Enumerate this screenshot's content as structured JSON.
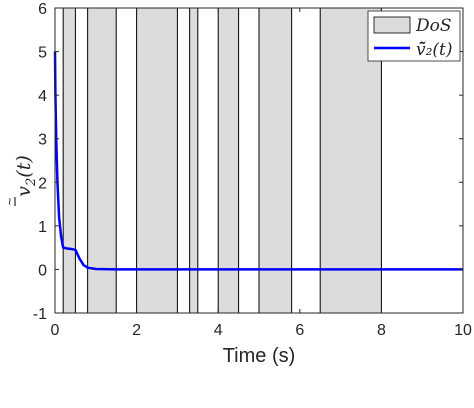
{
  "chart_data": {
    "type": "line",
    "xlabel": "Time (s)",
    "ylabel_math": {
      "base": "v",
      "subscript": "2",
      "argument": "(t)"
    },
    "xlim": [
      0,
      10
    ],
    "ylim": [
      -1,
      6
    ],
    "x_ticks": [
      "0",
      "2",
      "4",
      "6",
      "8",
      "10"
    ],
    "y_ticks": [
      "-1",
      "0",
      "1",
      "2",
      "3",
      "4",
      "5",
      "6"
    ],
    "grid": false,
    "legend": {
      "placement": "top-right",
      "entries": [
        "DoS",
        "v̄̃₂(t)"
      ]
    },
    "dos_intervals": [
      [
        0.2,
        0.5
      ],
      [
        0.8,
        1.5
      ],
      [
        2.0,
        3.0
      ],
      [
        3.3,
        3.5
      ],
      [
        4.0,
        4.5
      ],
      [
        5.0,
        5.8
      ],
      [
        6.5,
        8.0
      ]
    ],
    "series": [
      {
        "name": "v̄̃₂(t)",
        "color": "#0000ff",
        "x": [
          0,
          0.01,
          0.03,
          0.06,
          0.1,
          0.15,
          0.2,
          0.3,
          0.4,
          0.5,
          0.6,
          0.7,
          0.8,
          1.0,
          1.5,
          2,
          3,
          4,
          5,
          6,
          7,
          8,
          9,
          10
        ],
        "y": [
          5.0,
          4.0,
          3.0,
          2.0,
          1.2,
          0.75,
          0.5,
          0.48,
          0.47,
          0.45,
          0.25,
          0.1,
          0.04,
          0.01,
          0,
          0,
          0,
          0,
          0,
          0,
          0,
          0,
          0,
          0
        ]
      }
    ],
    "colors": {
      "dos_fill": "#dcdcdc",
      "dos_stroke": "#000000",
      "series": "#0000ff",
      "axes": "#262626"
    }
  }
}
